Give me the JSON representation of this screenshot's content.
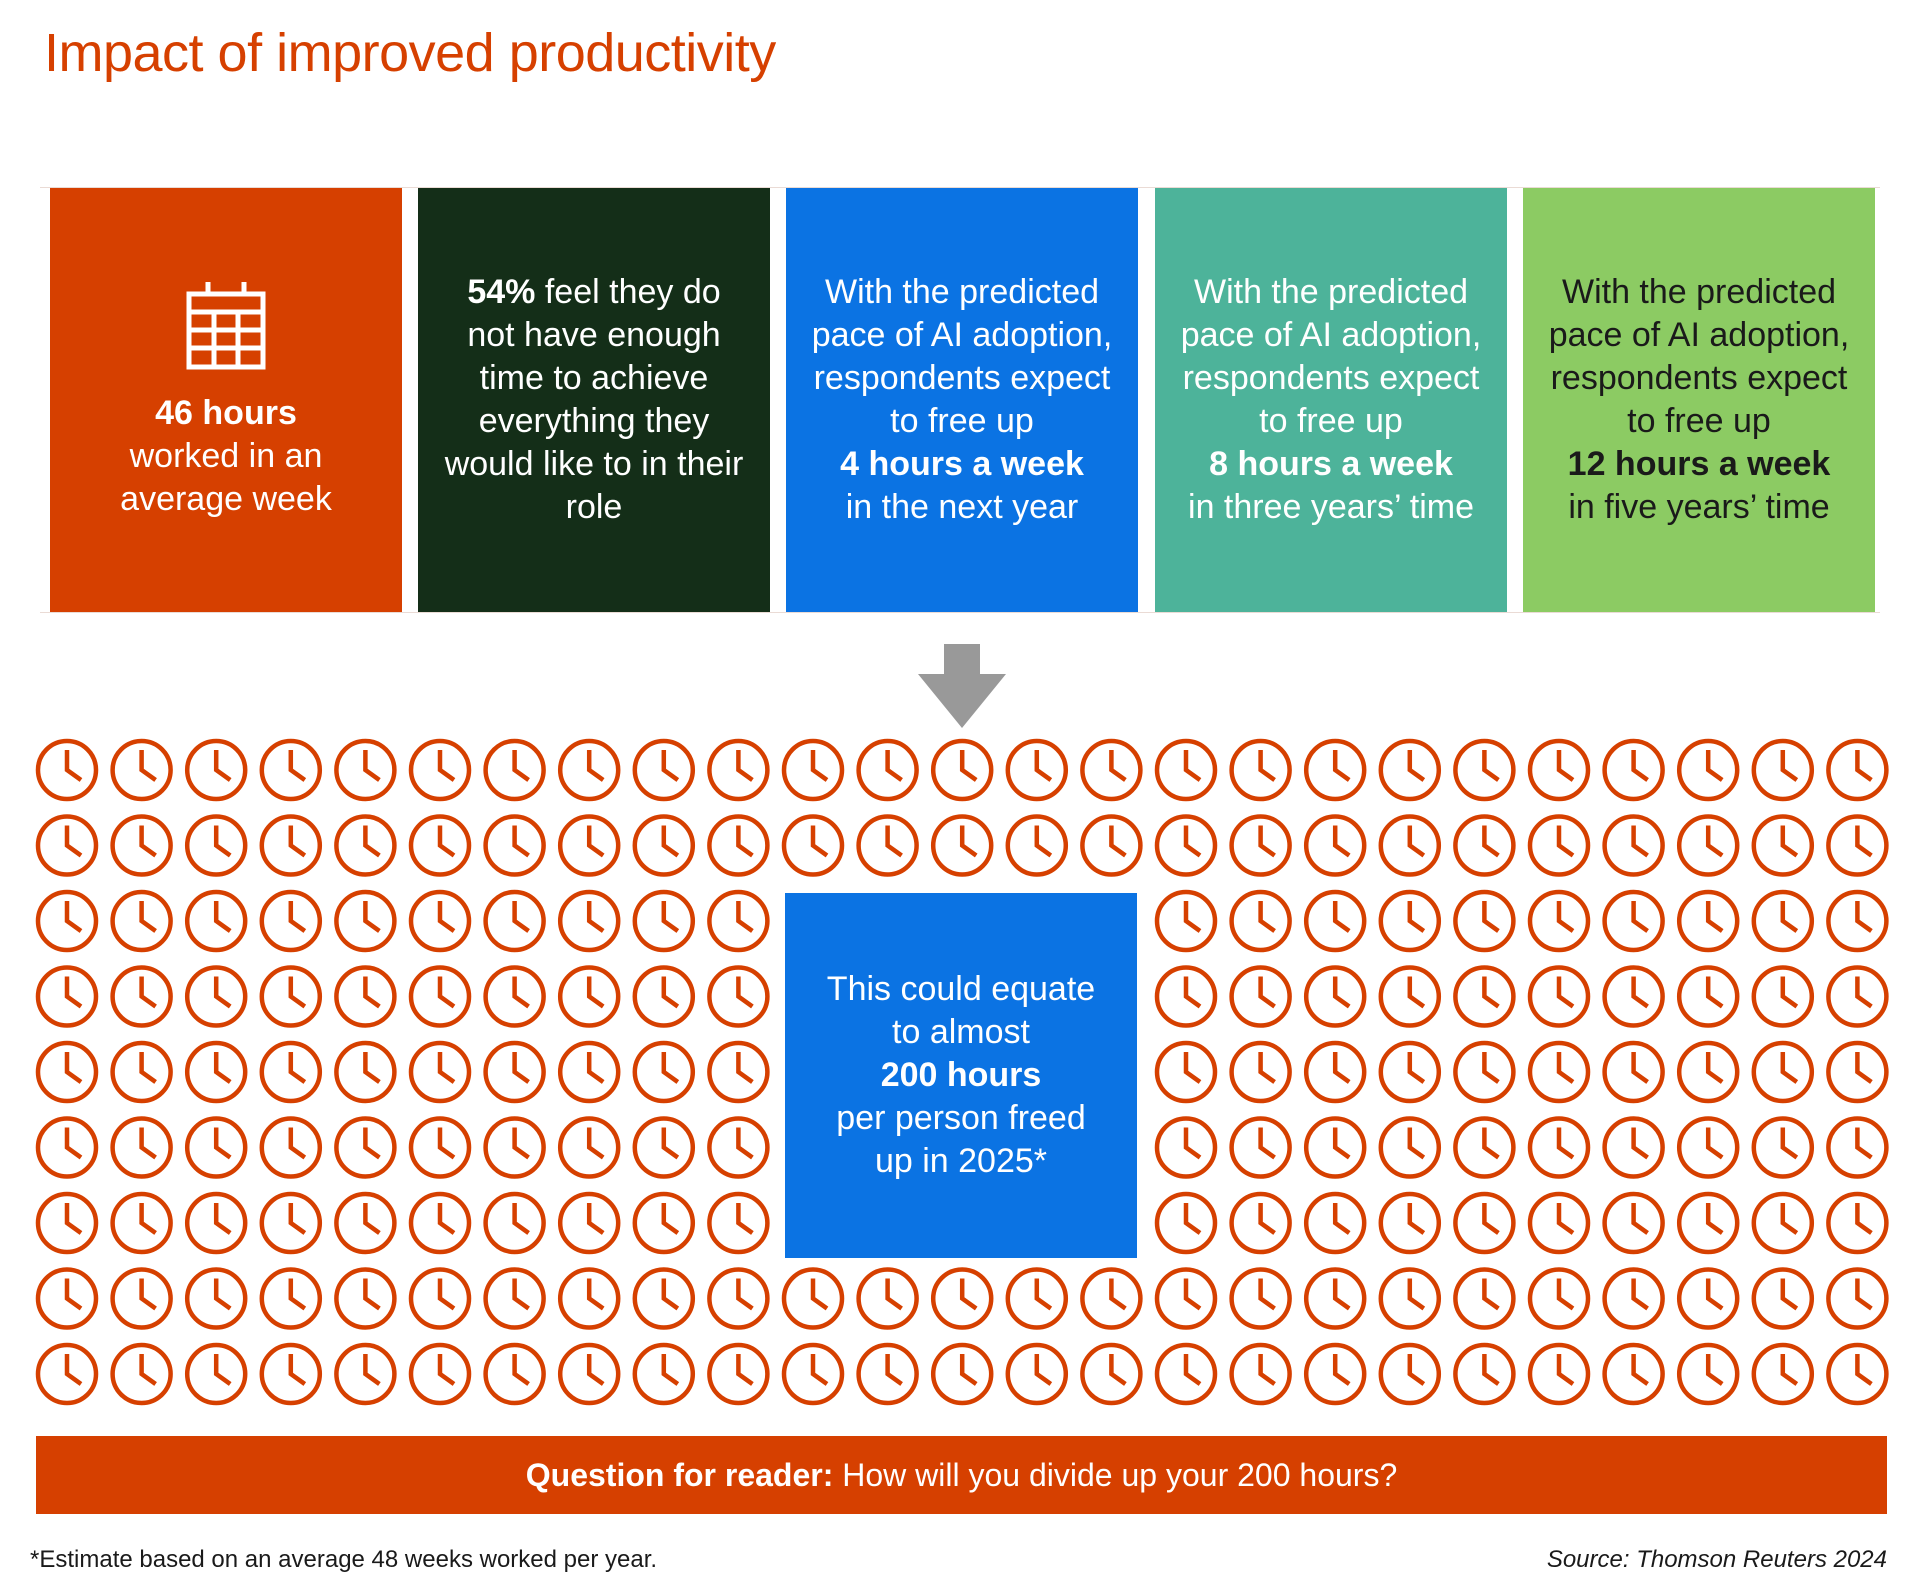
{
  "title": "Impact of improved productivity",
  "colors": {
    "orange": "#D64000",
    "dark_green": "#142E18",
    "blue": "#0B73E3",
    "teal": "#4DB39A",
    "light_green": "#8CCB63"
  },
  "cards": [
    {
      "icon": "calendar-icon",
      "bold": "46 hours",
      "line1": "worked in an",
      "line2": "average week"
    },
    {
      "bold": "54%",
      "text": " feel they do not have enough time to achieve everything they would like to in their role"
    },
    {
      "pre": "With the predicted pace of AI adoption, respondents expect to free up",
      "bold": "4 hours a week",
      "post": "in the next year"
    },
    {
      "pre": "With the predicted pace of AI adoption, respondents expect to free up",
      "bold": "8 hours a week",
      "post": "in three years’ time"
    },
    {
      "pre": "With the predicted pace of AI adoption, respondents expect to free up",
      "bold": "12 hours a week",
      "post": "in five years’ time"
    }
  ],
  "clock_grid": {
    "columns": 25,
    "rows": 9,
    "clock_count": 200,
    "icon": "clock-icon"
  },
  "center_box": {
    "pre": "This could equate to almost",
    "bold": "200 hours",
    "post": "per person freed up in 2025*"
  },
  "question": {
    "bold": "Question for reader:",
    "text": " How will you divide up your 200 hours?"
  },
  "footnote": "*Estimate based on an average 48 weeks worked per year.",
  "source": "Source: Thomson Reuters 2024"
}
